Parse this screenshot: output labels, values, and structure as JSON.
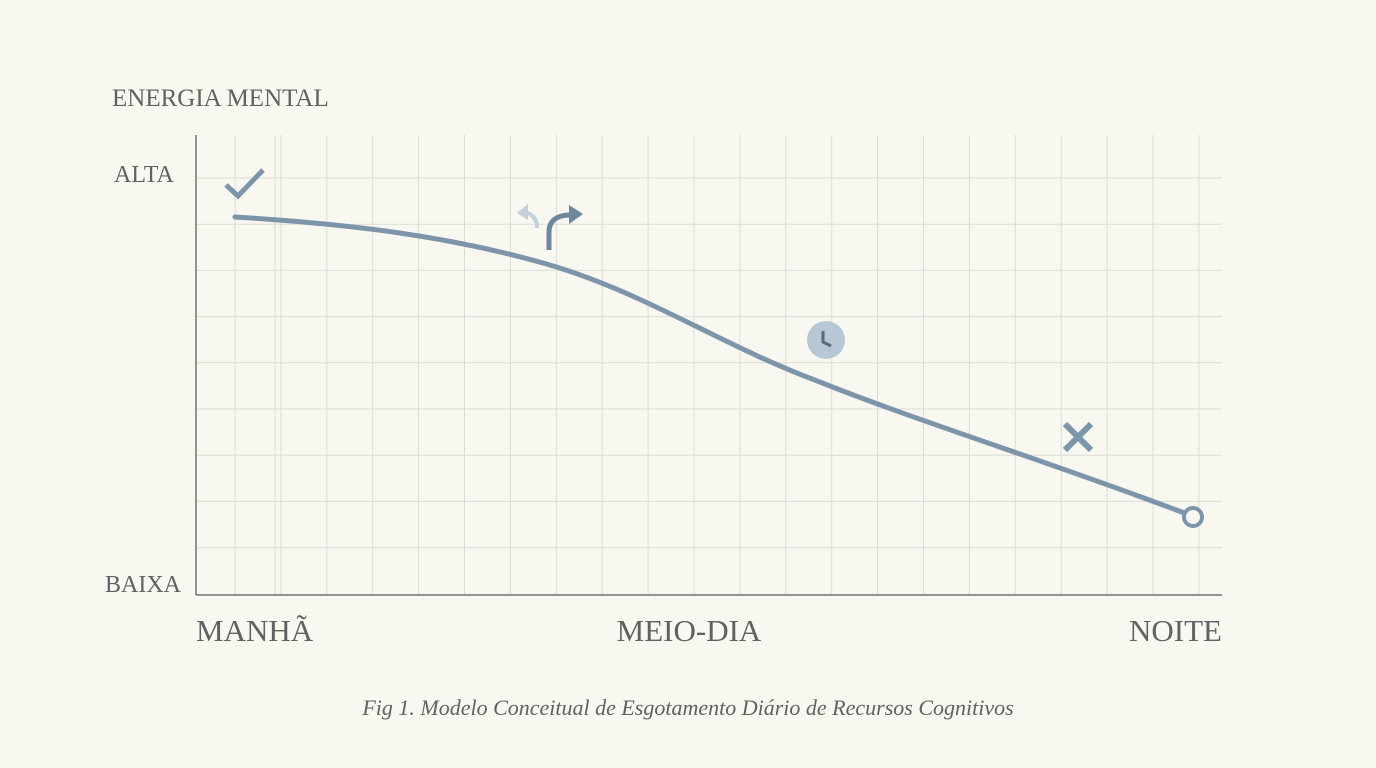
{
  "header": {
    "title": "ENERGIA MENTAL"
  },
  "y_axis": {
    "labels": [
      "ALTA",
      "BAIXA"
    ]
  },
  "x_axis": {
    "labels": [
      "MANHÃ",
      "MEIO-DIA",
      "NOITE"
    ]
  },
  "caption": "Fig 1. Modelo Conceitual de Esgotamento Diário de Recursos Cognitivos"
}
